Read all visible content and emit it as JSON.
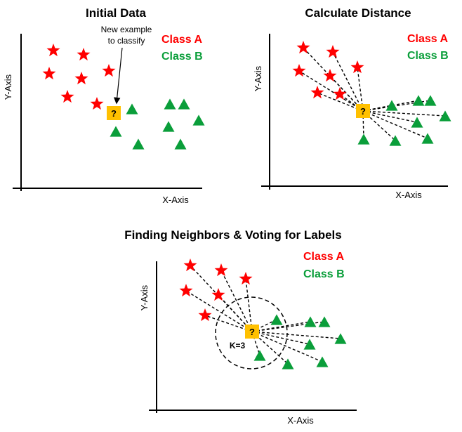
{
  "colors": {
    "class_a": "#ff0000",
    "class_b": "#0a9e3a",
    "unknown": "#ffc000",
    "axis": "#000000",
    "title": "#000000"
  },
  "legend": {
    "class_a": "Class A",
    "class_b": "Class B"
  },
  "icons": {
    "class_a_marker": "star-icon",
    "class_b_marker": "triangle-icon",
    "unknown_marker": "question-square-icon"
  },
  "unknown_symbol": "?",
  "panels": [
    {
      "id": "initial",
      "title": "Initial Data",
      "x_axis_label": "X-Axis",
      "y_axis_label": "Y-Axis",
      "annotation": [
        "New example",
        "to classify"
      ],
      "show_distances": false,
      "show_circle": false,
      "k_label": ""
    },
    {
      "id": "distance",
      "title": "Calculate Distance",
      "x_axis_label": "X-Axis",
      "y_axis_label": "Y-Axis",
      "annotation": [],
      "show_distances": true,
      "show_circle": false,
      "k_label": ""
    },
    {
      "id": "voting",
      "title": "Finding Neighbors & Voting for Labels",
      "x_axis_label": "X-Axis",
      "y_axis_label": "Y-Axis",
      "annotation": [],
      "show_distances": true,
      "show_circle": true,
      "k_label": "K=3"
    }
  ]
}
